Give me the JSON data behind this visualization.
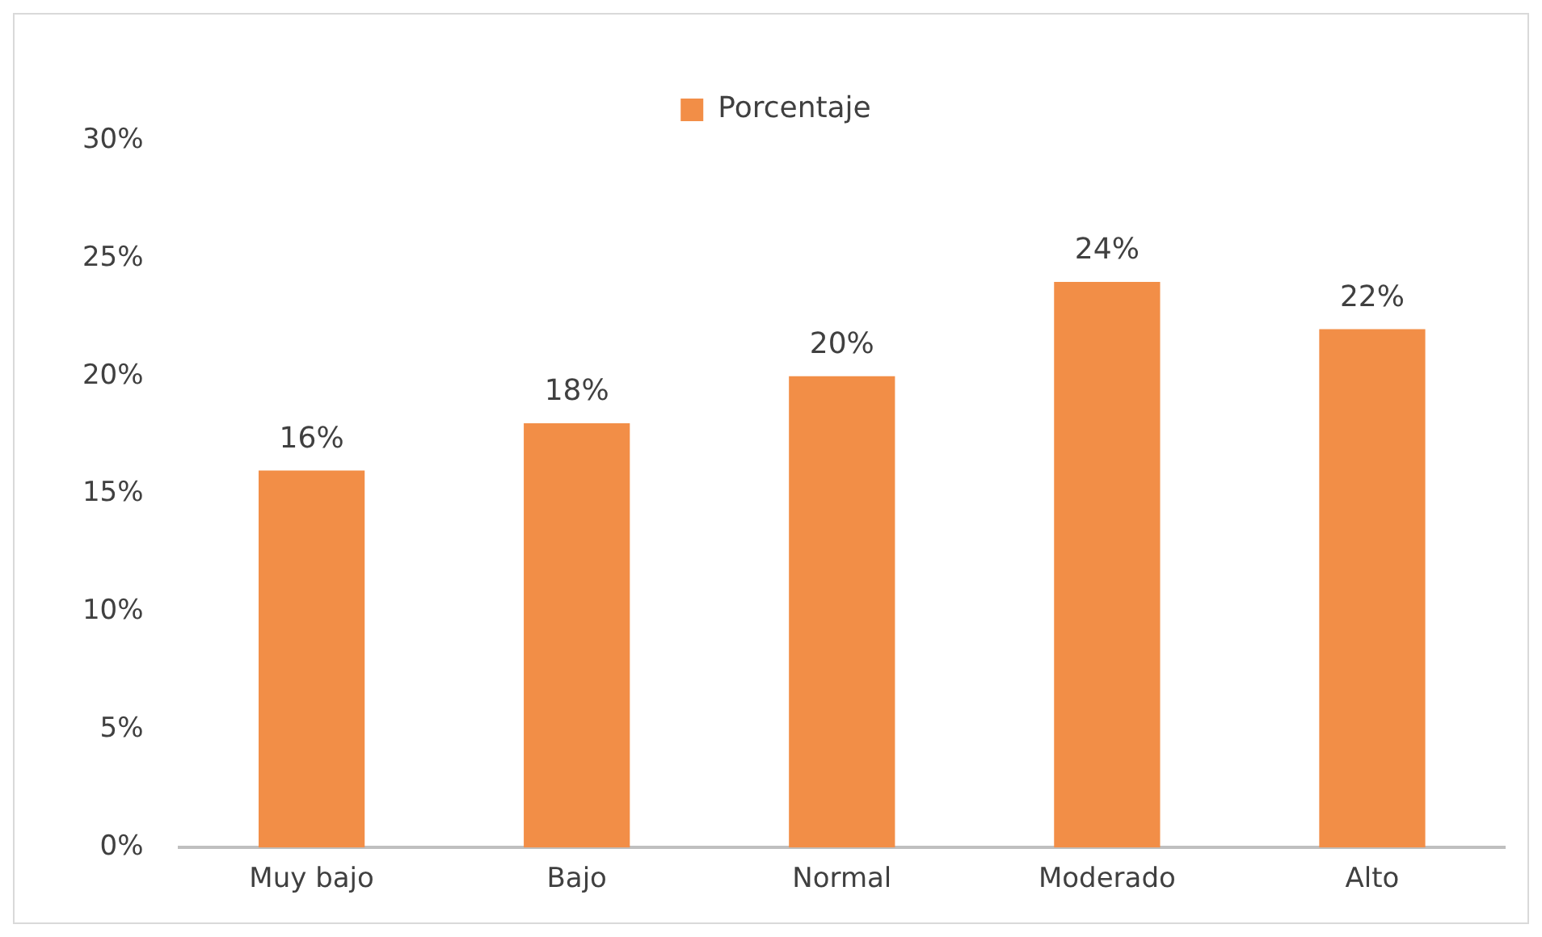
{
  "chart_data": {
    "type": "bar",
    "categories": [
      "Muy bajo",
      "Bajo",
      "Normal",
      "Moderado",
      "Alto"
    ],
    "series": [
      {
        "name": "Porcentaje",
        "color": "#f28e47",
        "values": [
          16,
          18,
          20,
          24,
          22
        ],
        "value_labels": [
          "16%",
          "18%",
          "20%",
          "24%",
          "22%"
        ]
      }
    ],
    "ylim": [
      0,
      30
    ],
    "yticks": [
      {
        "value": 0,
        "label": "0%"
      },
      {
        "value": 5,
        "label": "5%"
      },
      {
        "value": 10,
        "label": "10%"
      },
      {
        "value": 15,
        "label": "15%"
      },
      {
        "value": 20,
        "label": "20%"
      },
      {
        "value": 25,
        "label": "25%"
      },
      {
        "value": 30,
        "label": "30%"
      }
    ],
    "grid": false,
    "legend": "top"
  }
}
